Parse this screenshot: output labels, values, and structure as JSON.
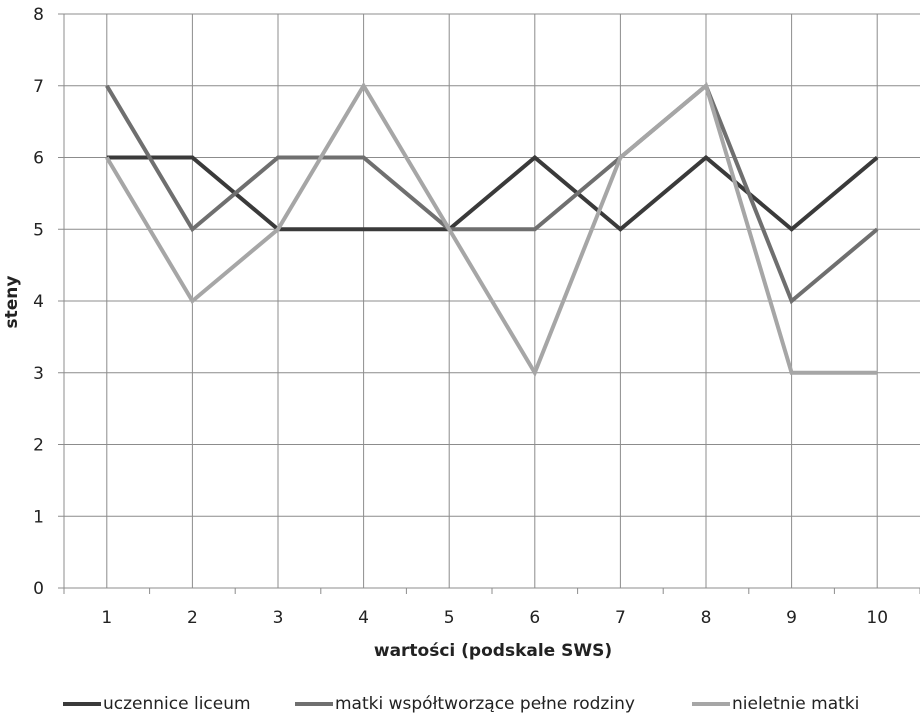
{
  "chart_data": {
    "type": "line",
    "title": "",
    "xlabel": "wartości (podskale SWS)",
    "ylabel": "steny",
    "x": [
      1,
      2,
      3,
      4,
      5,
      6,
      7,
      8,
      9,
      10
    ],
    "x_tick_labels": [
      "1",
      "2",
      "3",
      "4",
      "5",
      "6",
      "7",
      "8",
      "9",
      "10"
    ],
    "y_tick_labels": [
      "0",
      "1",
      "2",
      "3",
      "4",
      "5",
      "6",
      "7",
      "8"
    ],
    "ylim": [
      0,
      8
    ],
    "grid": "horizontal and vertical",
    "legend_position": "bottom",
    "series": [
      {
        "name": "uczennice liceum",
        "color": "#3a3a3a",
        "values": [
          6,
          6,
          5,
          5,
          5,
          6,
          5,
          6,
          5,
          6
        ]
      },
      {
        "name": "matki współtworzące pełne rodziny",
        "color": "#6f6f6f",
        "values": [
          7,
          5,
          6,
          6,
          5,
          5,
          6,
          7,
          4,
          5
        ]
      },
      {
        "name": "nieletnie matki",
        "color": "#a6a6a6",
        "values": [
          6,
          4,
          5,
          7,
          5,
          3,
          6,
          7,
          3,
          3
        ]
      }
    ]
  }
}
